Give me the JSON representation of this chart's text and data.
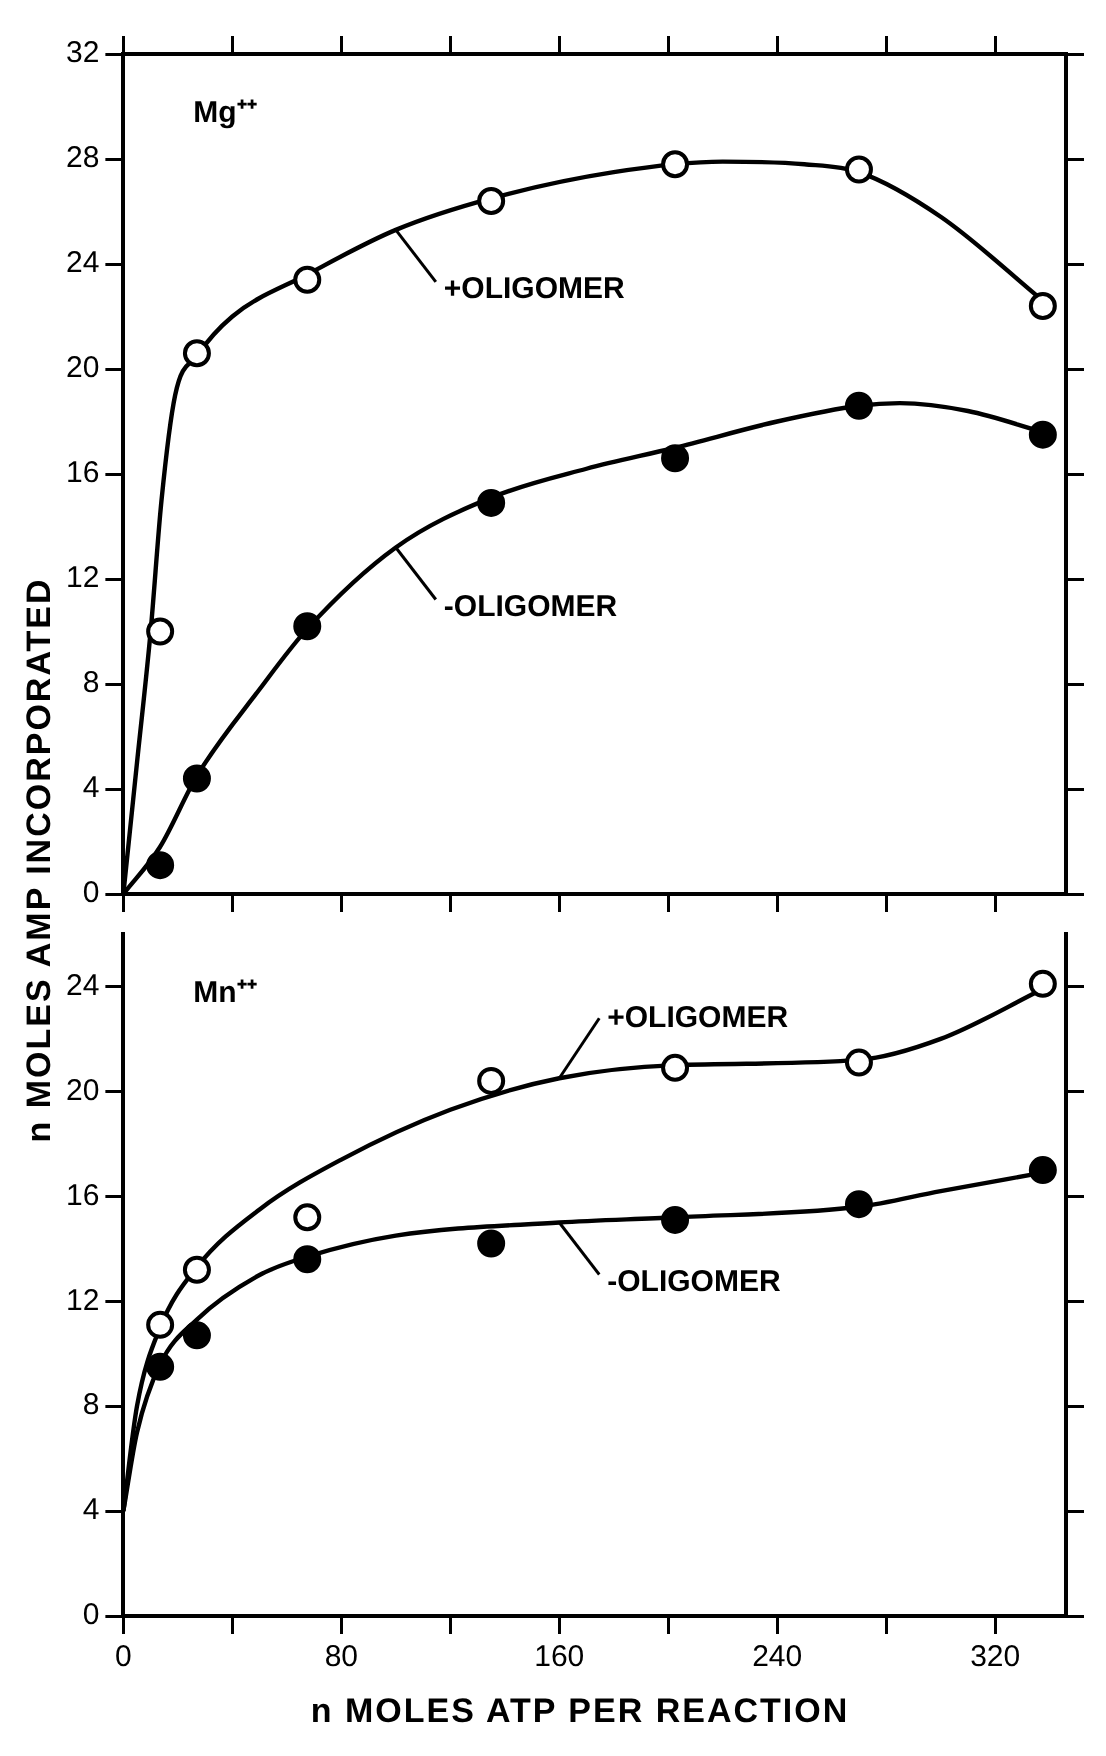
{
  "chart_data": [
    {
      "type": "scatter",
      "ylabel": "n MOLES AMP INCORPORATED",
      "annotations": [
        "Mg⁺⁺"
      ],
      "xlim": [
        0,
        346
      ],
      "xticks": [
        0,
        {
          "value": 40,
          "label": null
        },
        {
          "value": 80,
          "label": null
        },
        {
          "value": 120,
          "label": null
        },
        {
          "value": 160,
          "label": null
        },
        {
          "value": 200,
          "label": null
        },
        {
          "value": 240,
          "label": null
        },
        {
          "value": 280,
          "label": null
        },
        {
          "value": 320,
          "label": null
        }
      ],
      "ylim": [
        0,
        32
      ],
      "yticks": [
        0,
        4,
        8,
        12,
        16,
        20,
        24,
        28,
        32
      ],
      "tick_labels": "y",
      "legend": "top",
      "grid": false,
      "series": [
        {
          "marker": "circle",
          "color": "#ffffff",
          "x": [
            13.5,
            27,
            67.5,
            135,
            202.5,
            270,
            337.5
          ],
          "values": [
            10.0,
            20.6,
            23.4,
            26.4,
            27.8,
            27.6,
            22.4
          ]
        },
        {
          "marker": "circle",
          "color": "#000000",
          "x": [
            13.5,
            27,
            67.5,
            135,
            202.5,
            270,
            337.5
          ],
          "values": [
            1.1,
            4.4,
            10.2,
            14.9,
            16.6,
            18.6,
            17.5
          ]
        },
        {
          "type": "line",
          "marker": "none",
          "name": "+OLIGOMER",
          "color": "#000000",
          "x": [
            0,
            5,
            10,
            14,
            19,
            27,
            40,
            67.5,
            100,
            135,
            180,
            220,
            250,
            270,
            300,
            337.5
          ],
          "values": [
            0,
            5,
            10,
            15,
            19,
            20.5,
            22,
            23.6,
            25.3,
            26.5,
            27.5,
            27.9,
            27.8,
            27.5,
            25.8,
            22.6
          ]
        },
        {
          "type": "line",
          "marker": "none",
          "name": "-OLIGOMER",
          "color": "#000000",
          "x": [
            0,
            13.5,
            27,
            50,
            67.5,
            100,
            135,
            170,
            202.5,
            240,
            270,
            285,
            310,
            337.5
          ],
          "values": [
            0,
            1.8,
            4.5,
            7.8,
            10.1,
            13.2,
            15.1,
            16.2,
            17,
            18,
            18.6,
            18.7,
            18.4,
            17.6
          ]
        }
      ]
    },
    {
      "type": "scatter",
      "xlabel": "n MOLES ATP PER REACTION",
      "annotations": [
        "Mn⁺⁺"
      ],
      "xlim": [
        0,
        346
      ],
      "xticks": [
        0,
        {
          "value": 40,
          "label": null
        },
        80,
        {
          "value": 120,
          "label": null
        },
        160,
        {
          "value": 200,
          "label": null
        },
        240,
        {
          "value": 280,
          "label": null
        },
        320
      ],
      "ylim": [
        0,
        26
      ],
      "yticks": [
        0,
        4,
        8,
        12,
        16,
        20,
        24
      ],
      "grid": false,
      "series": [
        {
          "marker": "circle",
          "color": "#ffffff",
          "x": [
            13.5,
            27,
            67.5,
            135,
            202.5,
            270,
            337.5
          ],
          "values": [
            11.1,
            13.2,
            15.2,
            20.4,
            20.9,
            21.1,
            24.1
          ]
        },
        {
          "marker": "circle",
          "color": "#000000",
          "x": [
            13.5,
            27,
            67.5,
            135,
            202.5,
            270,
            337.5
          ],
          "values": [
            9.5,
            10.7,
            13.6,
            14.2,
            15.1,
            15.7,
            17.0
          ]
        },
        {
          "type": "line",
          "marker": "none",
          "name": "+OLIGOMER",
          "color": "#000000",
          "x": [
            0,
            5,
            13.5,
            27,
            50,
            80,
            120,
            160,
            202.5,
            270,
            300,
            337.5
          ],
          "values": [
            4,
            8,
            11,
            13.3,
            15.5,
            17.4,
            19.3,
            20.5,
            21,
            21.2,
            22,
            23.9
          ]
        },
        {
          "type": "line",
          "marker": "none",
          "name": "-OLIGOMER",
          "color": "#000000",
          "x": [
            0,
            5,
            13.5,
            27,
            50,
            67.5,
            100,
            160,
            202.5,
            270,
            300,
            337.5
          ],
          "values": [
            4,
            7,
            9.6,
            11.3,
            13,
            13.7,
            14.5,
            15,
            15.2,
            15.6,
            16.2,
            16.9
          ]
        }
      ]
    }
  ]
}
